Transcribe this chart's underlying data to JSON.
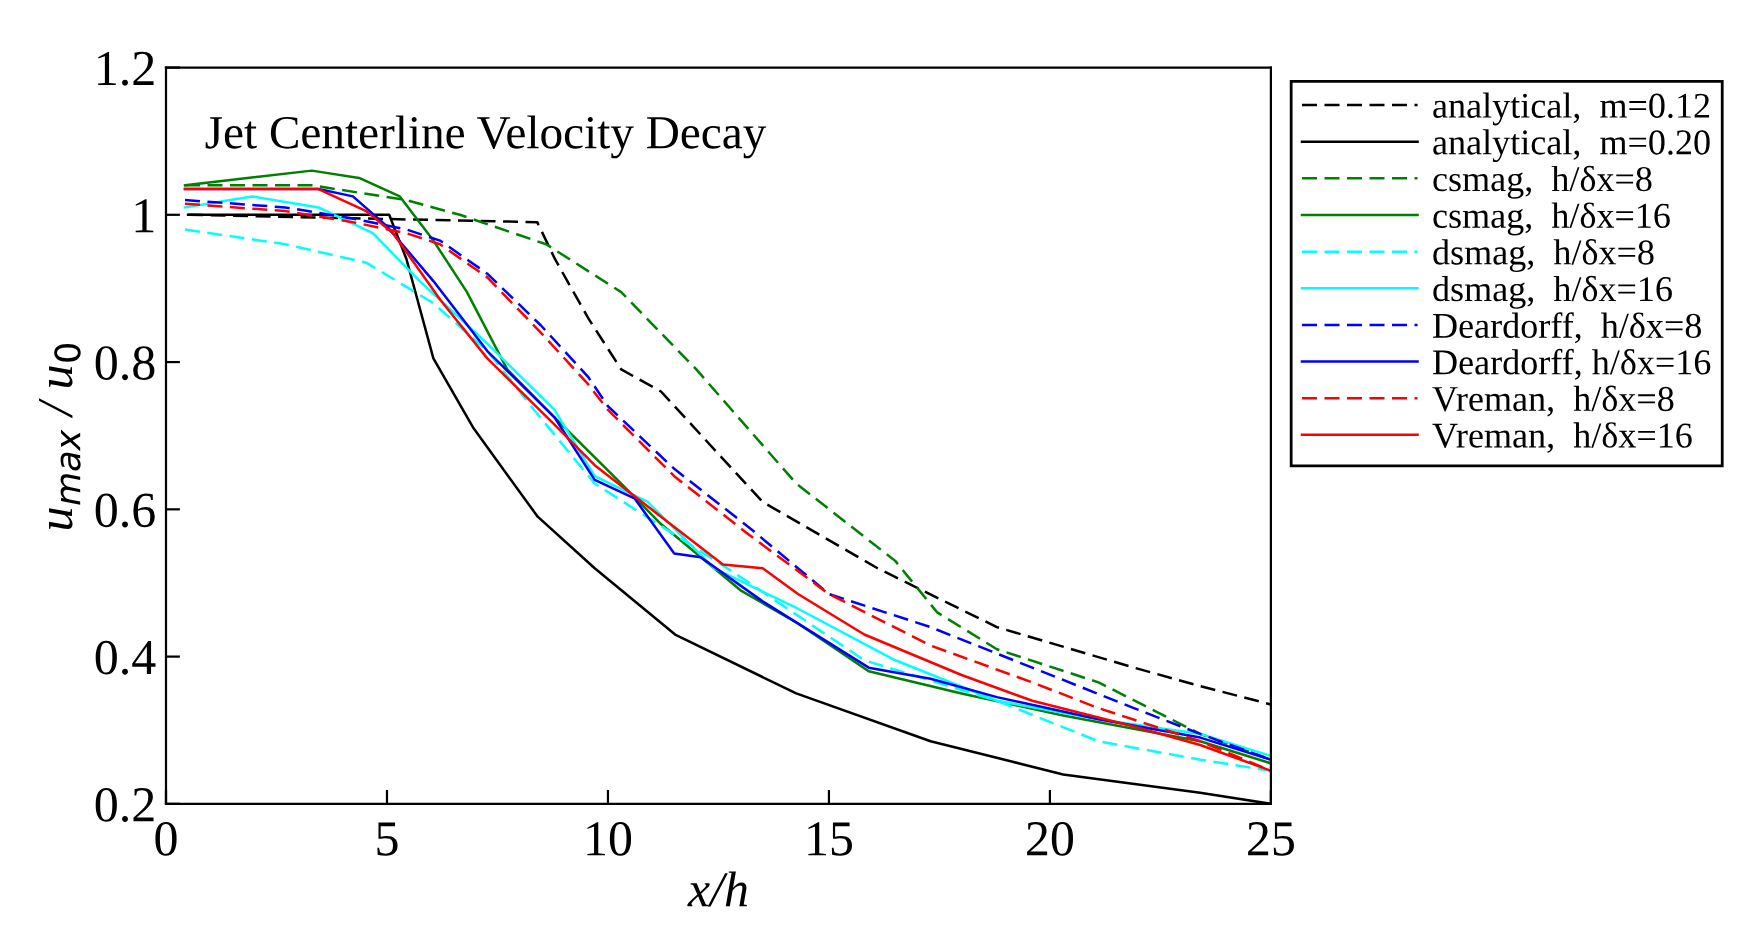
{
  "chart_data": {
    "type": "line",
    "title": "Jet Centerline Velocity Decay",
    "xlabel": "x/h",
    "ylabel": "u$_{max}$ / u$_{0}$",
    "xlim": [
      0,
      25
    ],
    "xticks": [
      0,
      5,
      10,
      15,
      20,
      25
    ],
    "ylim": [
      0.2,
      1.2
    ],
    "yticks": [
      0.2,
      0.4,
      0.6,
      0.8,
      1,
      1.2
    ],
    "grid": false,
    "legend": "right",
    "marker": "none",
    "series": [
      {
        "name": "analytical,  m=0.12",
        "color": "#000000",
        "line_style": "dashed",
        "x": [
          0.5,
          8.4,
          8.8,
          9.55,
          10.3,
          11.2,
          13.5,
          16.1,
          18.8,
          21.9,
          23.4,
          25
        ],
        "values": [
          1.0,
          0.99,
          0.94,
          0.86,
          0.79,
          0.76,
          0.61,
          0.52,
          0.44,
          0.385,
          0.36,
          0.335
        ]
      },
      {
        "name": "analytical,  m=0.20",
        "color": "#000000",
        "line_style": "solid",
        "x": [
          0.5,
          5.05,
          5.44,
          6.05,
          6.96,
          8.41,
          9.7,
          11.52,
          14.26,
          17.3,
          20.3,
          23.4,
          25
        ],
        "values": [
          1.0,
          1.0,
          0.94,
          0.805,
          0.71,
          0.59,
          0.52,
          0.43,
          0.35,
          0.285,
          0.24,
          0.215,
          0.2
        ]
      },
      {
        "name": "csmag,  h/δx=8",
        "color": "#008000",
        "line_style": "dashed",
        "x": [
          0.43,
          3.3,
          5.44,
          6.65,
          8.6,
          10.3,
          12.0,
          14.26,
          16.5,
          17.45,
          18.8,
          21.1,
          23.4,
          25
        ],
        "values": [
          1.04,
          1.04,
          1.02,
          1.0,
          0.96,
          0.895,
          0.79,
          0.635,
          0.53,
          0.46,
          0.41,
          0.365,
          0.295,
          0.26
        ]
      },
      {
        "name": "csmag,  h/δx=16",
        "color": "#008000",
        "line_style": "solid",
        "x": [
          0.43,
          3.3,
          4.37,
          5.29,
          6.05,
          6.81,
          7.72,
          8.79,
          10.3,
          11.2,
          13.0,
          14.3,
          15.9,
          18.0,
          20.3,
          23.4,
          25
        ],
        "values": [
          1.04,
          1.06,
          1.05,
          1.025,
          0.965,
          0.895,
          0.79,
          0.725,
          0.635,
          0.58,
          0.49,
          0.445,
          0.38,
          0.35,
          0.32,
          0.285,
          0.255
        ]
      },
      {
        "name": "dsmag,  h/δx=8",
        "color": "#00ffff",
        "line_style": "dashed",
        "x": [
          0.43,
          2.7,
          4.53,
          6.05,
          7.27,
          8.33,
          9.7,
          12.7,
          15.8,
          18.8,
          21.1,
          23.4,
          25
        ],
        "values": [
          0.98,
          0.96,
          0.935,
          0.88,
          0.815,
          0.735,
          0.635,
          0.52,
          0.395,
          0.34,
          0.285,
          0.26,
          0.245
        ]
      },
      {
        "name": "dsmag,  h/δx=16",
        "color": "#00ffff",
        "line_style": "solid",
        "x": [
          0.43,
          1.95,
          3.45,
          4.68,
          5.74,
          7.27,
          8.79,
          9.7,
          10.9,
          12.4,
          14.3,
          16.5,
          18.8,
          21.1,
          23.4,
          25
        ],
        "values": [
          1.01,
          1.025,
          1.01,
          0.975,
          0.91,
          0.825,
          0.735,
          0.645,
          0.61,
          0.52,
          0.465,
          0.395,
          0.34,
          0.315,
          0.295,
          0.265
        ]
      },
      {
        "name": "Deardorff,  h/δx=8",
        "color": "#0000ff",
        "line_style": "dashed",
        "x": [
          0.43,
          2.7,
          4.23,
          5.44,
          6.2,
          7.27,
          8.48,
          9.55,
          10.0,
          11.5,
          13.2,
          15.0,
          17.3,
          19.6,
          21.9,
          23.4,
          25
        ],
        "values": [
          1.02,
          1.01,
          0.995,
          0.98,
          0.965,
          0.92,
          0.85,
          0.78,
          0.74,
          0.655,
          0.575,
          0.485,
          0.44,
          0.385,
          0.33,
          0.295,
          0.26
        ]
      },
      {
        "name": "Deardorff, h/δx=16",
        "color": "#0000ff",
        "line_style": "solid",
        "x": [
          0.43,
          3.45,
          4.23,
          4.99,
          6.05,
          7.27,
          8.79,
          9.7,
          10.6,
          11.5,
          12.1,
          13.5,
          15.9,
          17.3,
          18.8,
          21.1,
          23.4,
          25
        ],
        "values": [
          1.035,
          1.035,
          1.025,
          0.985,
          0.91,
          0.815,
          0.725,
          0.64,
          0.615,
          0.54,
          0.535,
          0.475,
          0.385,
          0.37,
          0.345,
          0.315,
          0.29,
          0.26
        ]
      },
      {
        "name": "Vreman,  h/δx=8",
        "color": "#ff0000",
        "line_style": "dashed",
        "x": [
          0.43,
          2.7,
          4.23,
          5.44,
          6.2,
          7.27,
          8.48,
          9.55,
          10.0,
          11.5,
          13.2,
          15.0,
          17.3,
          19.6,
          21.1,
          23.4,
          25
        ],
        "values": [
          1.015,
          1.005,
          0.99,
          0.975,
          0.96,
          0.915,
          0.84,
          0.77,
          0.735,
          0.645,
          0.565,
          0.485,
          0.415,
          0.365,
          0.33,
          0.285,
          0.245
        ]
      },
      {
        "name": "Vreman,  h/δx=16",
        "color": "#ff0000",
        "line_style": "solid",
        "x": [
          0.43,
          3.45,
          4.53,
          5.14,
          6.2,
          7.27,
          8.79,
          9.7,
          11.2,
          12.6,
          13.5,
          14.3,
          15.8,
          18.0,
          19.6,
          21.9,
          23.4,
          25
        ],
        "values": [
          1.035,
          1.035,
          1.005,
          0.975,
          0.885,
          0.805,
          0.715,
          0.66,
          0.59,
          0.525,
          0.52,
          0.485,
          0.43,
          0.375,
          0.34,
          0.305,
          0.28,
          0.245
        ]
      }
    ]
  }
}
